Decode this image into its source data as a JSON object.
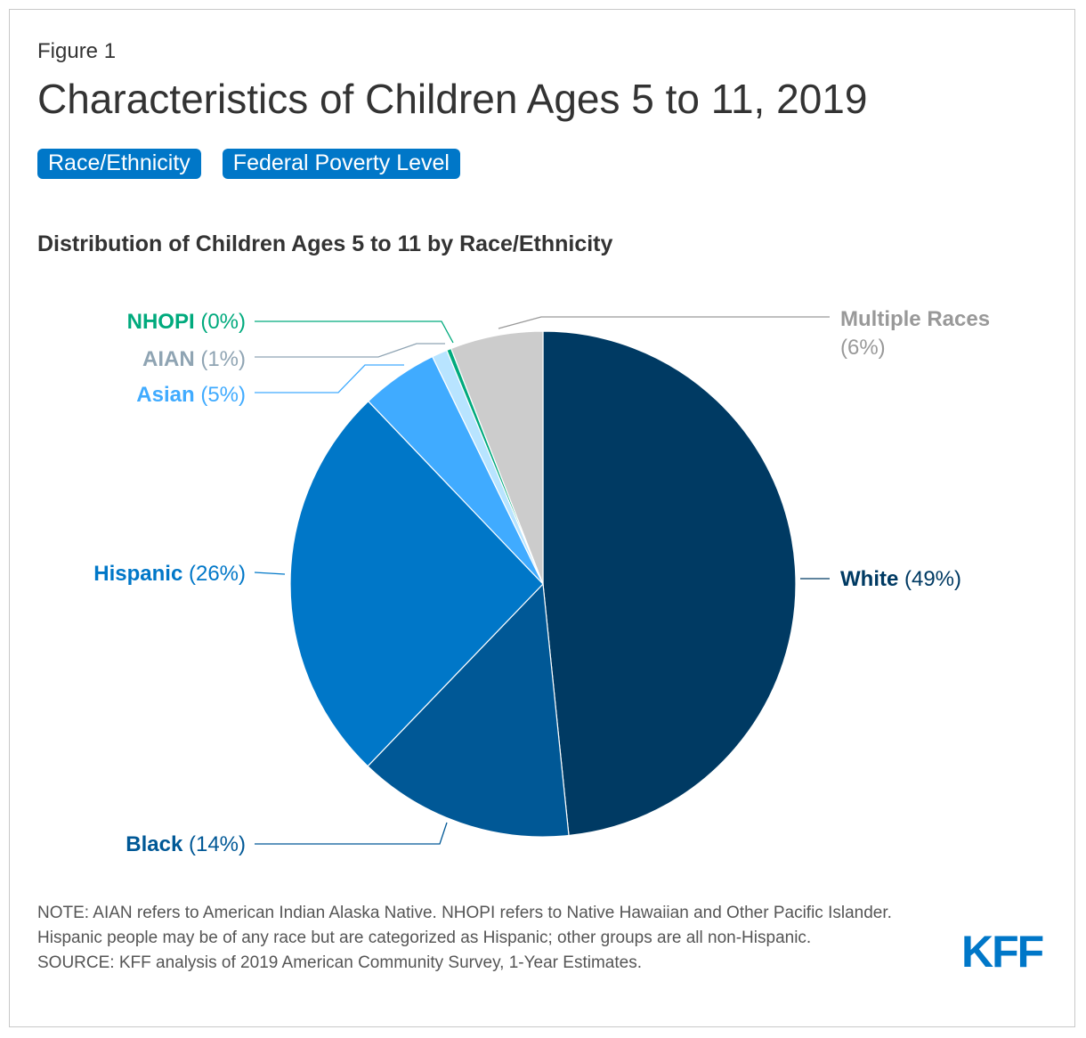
{
  "figure_label": "Figure 1",
  "title": "Characteristics of Children Ages 5 to 11, 2019",
  "tabs": [
    {
      "label": "Race/Ethnicity"
    },
    {
      "label": "Federal Poverty Level"
    }
  ],
  "note": "NOTE: AIAN refers to American Indian Alaska Native. NHOPI refers to Native Hawaiian and Other Pacific Islander. Hispanic people may be of any race but are categorized as Hispanic; other groups are all non-Hispanic.",
  "source": "SOURCE: KFF analysis of 2019 American Community Survey, 1-Year Estimates.",
  "logo": "KFF",
  "chart_data": {
    "type": "pie",
    "title": "Distribution of Children Ages 5 to 11 by Race/Ethnicity",
    "slices": [
      {
        "name": "White",
        "value": 49,
        "label": "(49%)",
        "color": "#003a63"
      },
      {
        "name": "Black",
        "value": 14,
        "label": "(14%)",
        "color": "#005896"
      },
      {
        "name": "Hispanic",
        "value": 26,
        "label": "(26%)",
        "color": "#0077c8"
      },
      {
        "name": "Asian",
        "value": 5,
        "label": "(5%)",
        "color": "#40abff"
      },
      {
        "name": "AIAN",
        "value": 1,
        "label": "(1%)",
        "color": "#b8e4ff",
        "text_color": "#8fa4b3"
      },
      {
        "name": "NHOPI",
        "value": 0.3,
        "label": "(0%)",
        "color": "#00aa7d"
      },
      {
        "name": "Multiple Races",
        "value": 6,
        "label": "(6%)",
        "color": "#cccccc",
        "text_color": "#999999"
      }
    ]
  }
}
